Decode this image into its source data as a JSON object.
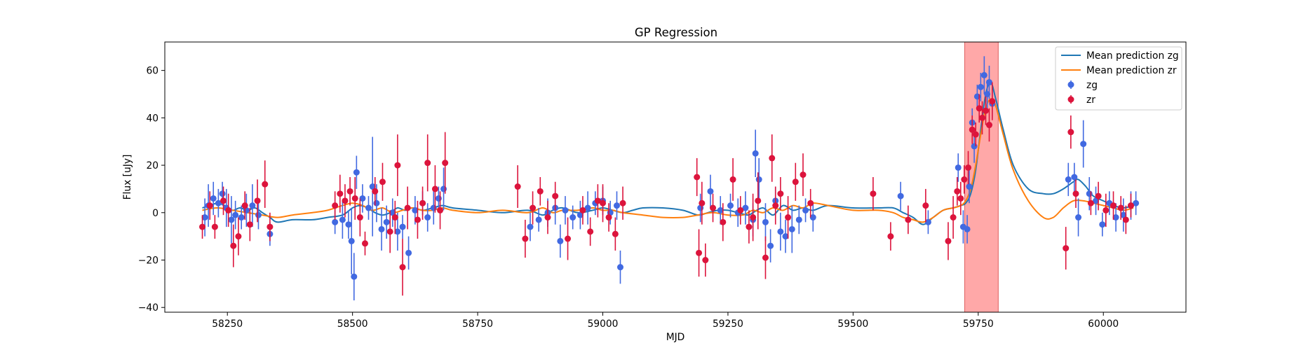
{
  "chart_data": {
    "type": "scatter",
    "title": "GP Regression",
    "xlabel": "MJD",
    "ylabel": "Flux [uJy]",
    "xlim": [
      58125,
      60165
    ],
    "ylim": [
      -42,
      72
    ],
    "xticks": [
      58250,
      58500,
      58750,
      59000,
      59250,
      59500,
      59750,
      60000
    ],
    "yticks": [
      -40,
      -20,
      0,
      20,
      40,
      60
    ],
    "grid": false,
    "legend_position": "top-right",
    "highlight_span": {
      "x0": 59723,
      "x1": 59790,
      "color": "#ff9f9f"
    },
    "colors": {
      "zg_points": "#4169e1",
      "zr_points": "#dc143c",
      "zg_mean": "#1f77b4",
      "zr_mean": "#ff7f0e"
    },
    "legend": [
      {
        "label": "Mean prediction zg",
        "kind": "line",
        "color": "#1f77b4"
      },
      {
        "label": "Mean prediction zr",
        "kind": "line",
        "color": "#ff7f0e"
      },
      {
        "label": "zg",
        "kind": "errorbar",
        "color": "#4169e1"
      },
      {
        "label": "zr",
        "kind": "errorbar",
        "color": "#dc143c"
      }
    ],
    "series": [
      {
        "name": "Mean prediction zg",
        "kind": "line",
        "color": "#1f77b4",
        "x": [
          58200,
          58215,
          58230,
          58245,
          58260,
          58275,
          58290,
          58305,
          58320,
          58335,
          58350,
          58380,
          58420,
          58450,
          58480,
          58500,
          58515,
          58530,
          58545,
          58560,
          58575,
          58590,
          58605,
          58620,
          58640,
          58660,
          58680,
          58700,
          58750,
          58800,
          58850,
          58880,
          58900,
          58920,
          58950,
          58980,
          59000,
          59020,
          59040,
          59060,
          59080,
          59120,
          59160,
          59190,
          59210,
          59230,
          59250,
          59270,
          59290,
          59300,
          59320,
          59340,
          59360,
          59380,
          59400,
          59420,
          59450,
          59500,
          59550,
          59580,
          59600,
          59620,
          59640,
          59660,
          59680,
          59700,
          59715,
          59725,
          59735,
          59745,
          59755,
          59765,
          59775,
          59785,
          59800,
          59820,
          59850,
          59880,
          59900,
          59920,
          59940,
          59950,
          59965,
          59980,
          60000,
          60020,
          60040,
          60060
        ],
        "y": [
          2,
          3,
          4,
          3,
          1,
          2,
          1,
          2,
          0,
          -2,
          -4,
          -3,
          -3,
          -2,
          -1,
          2,
          3,
          2,
          0,
          -1,
          0,
          2,
          1,
          2,
          1,
          2,
          3,
          2,
          1,
          0,
          1,
          -1,
          1,
          2,
          0,
          1,
          2,
          1,
          0,
          1,
          2,
          2,
          1,
          -1,
          0,
          1,
          1,
          0,
          -1,
          0,
          2,
          -1,
          3,
          1,
          2,
          1,
          3,
          2,
          2,
          2,
          0,
          -2,
          -5,
          -2,
          1,
          2,
          3,
          4,
          8,
          18,
          35,
          50,
          55,
          48,
          35,
          20,
          10,
          8,
          8,
          10,
          13,
          14,
          11,
          7,
          5,
          3,
          2,
          3
        ]
      },
      {
        "name": "Mean prediction zr",
        "kind": "line",
        "color": "#ff7f0e",
        "x": [
          58200,
          58230,
          58260,
          58290,
          58320,
          58350,
          58380,
          58420,
          58450,
          58480,
          58500,
          58520,
          58540,
          58560,
          58580,
          58600,
          58620,
          58640,
          58660,
          58680,
          58700,
          58750,
          58800,
          58850,
          58880,
          58900,
          58920,
          58950,
          58980,
          59000,
          59020,
          59040,
          59080,
          59120,
          59160,
          59190,
          59220,
          59250,
          59280,
          59300,
          59320,
          59340,
          59360,
          59380,
          59400,
          59420,
          59450,
          59500,
          59550,
          59580,
          59600,
          59620,
          59640,
          59660,
          59680,
          59700,
          59715,
          59725,
          59735,
          59745,
          59755,
          59765,
          59775,
          59785,
          59800,
          59820,
          59850,
          59880,
          59900,
          59920,
          59940,
          59960,
          59980,
          60000,
          60020,
          60040,
          60060
        ],
        "y": [
          1,
          2,
          1,
          0,
          -1,
          -2,
          -1,
          0,
          1,
          3,
          4,
          3,
          1,
          2,
          0,
          1,
          2,
          1,
          1,
          2,
          1,
          0,
          1,
          0,
          2,
          0,
          1,
          1,
          2,
          1,
          1,
          0,
          -1,
          -2,
          -2,
          -1,
          0,
          -1,
          -1,
          1,
          0,
          2,
          1,
          3,
          2,
          4,
          3,
          1,
          1,
          0,
          -2,
          -3,
          -4,
          -2,
          1,
          2,
          3,
          5,
          10,
          20,
          33,
          44,
          48,
          45,
          33,
          18,
          5,
          -2,
          -2,
          2,
          5,
          5,
          4,
          3,
          2,
          1,
          2
        ]
      },
      {
        "name": "zg",
        "kind": "errorbar",
        "color": "#4169e1",
        "x": [
          58205,
          58212,
          58222,
          58232,
          58240,
          58248,
          58258,
          58266,
          58278,
          58288,
          58300,
          58312,
          58335,
          58465,
          58480,
          58492,
          58498,
          58503,
          58508,
          58520,
          58532,
          58540,
          58548,
          58558,
          58568,
          58580,
          58590,
          58600,
          58612,
          58625,
          58640,
          58650,
          58662,
          58672,
          58682,
          58855,
          58872,
          58890,
          58905,
          58915,
          58925,
          58940,
          58955,
          58970,
          58985,
          59000,
          59015,
          59028,
          59035,
          59195,
          59215,
          59235,
          59255,
          59270,
          59285,
          59300,
          59305,
          59312,
          59325,
          59335,
          59345,
          59355,
          59365,
          59378,
          59392,
          59405,
          59420,
          59595,
          59650,
          59710,
          59720,
          59728,
          59732,
          59738,
          59742,
          59748,
          59755,
          59762,
          59768,
          59772,
          59778,
          59930,
          59942,
          59950,
          59960,
          59972,
          59985,
          59998,
          60012,
          60025,
          60040,
          60055,
          60065
        ],
        "y": [
          -2,
          3,
          6,
          4,
          8,
          2,
          -3,
          -1,
          -2,
          1,
          3,
          -1,
          -9,
          -4,
          -3,
          -5,
          -12,
          -27,
          17,
          6,
          2,
          11,
          4,
          -7,
          -4,
          0,
          -8,
          -6,
          -17,
          1,
          4,
          -2,
          2,
          6,
          10,
          -6,
          -3,
          0,
          2,
          -12,
          1,
          -2,
          -1,
          2,
          4,
          5,
          0,
          3,
          -23,
          2,
          9,
          1,
          3,
          0,
          2,
          -3,
          25,
          14,
          -4,
          -14,
          5,
          -8,
          -10,
          -7,
          -3,
          1,
          -2,
          7,
          -4,
          19,
          -6,
          -7,
          11,
          38,
          28,
          49,
          53,
          58,
          50,
          55,
          46,
          14,
          15,
          -2,
          29,
          8,
          5,
          -5,
          4,
          -2,
          -1,
          3,
          4
        ],
        "yerr": [
          8,
          9,
          7,
          6,
          5,
          8,
          10,
          6,
          5,
          7,
          9,
          6,
          5,
          5,
          8,
          6,
          14,
          10,
          7,
          6,
          5,
          21,
          8,
          9,
          7,
          6,
          8,
          5,
          7,
          6,
          5,
          6,
          7,
          5,
          9,
          6,
          5,
          6,
          7,
          7,
          6,
          5,
          6,
          7,
          5,
          6,
          5,
          6,
          7,
          6,
          7,
          6,
          5,
          6,
          7,
          7,
          10,
          9,
          8,
          7,
          6,
          8,
          7,
          10,
          6,
          5,
          6,
          6,
          5,
          6,
          7,
          6,
          7,
          6,
          7,
          5,
          6,
          8,
          6,
          7,
          6,
          7,
          6,
          8,
          10,
          7,
          6,
          5,
          5,
          6,
          7,
          6,
          5
        ]
      },
      {
        "name": "zr",
        "kind": "errorbar",
        "color": "#dc143c",
        "x": [
          58200,
          58215,
          58225,
          58242,
          58252,
          58262,
          58272,
          58285,
          58295,
          58310,
          58325,
          58335,
          58465,
          58475,
          58485,
          58495,
          58505,
          58515,
          58525,
          58545,
          58560,
          58575,
          58585,
          58590,
          58600,
          58610,
          58630,
          58640,
          58650,
          58665,
          58675,
          58685,
          58830,
          58845,
          58860,
          58875,
          58890,
          58905,
          58930,
          58960,
          58975,
          58990,
          59000,
          59012,
          59025,
          59040,
          59188,
          59192,
          59198,
          59205,
          59220,
          59240,
          59260,
          59275,
          59292,
          59300,
          59310,
          59325,
          59338,
          59345,
          59355,
          59370,
          59385,
          59400,
          59415,
          59540,
          59575,
          59610,
          59645,
          59690,
          59700,
          59708,
          59715,
          59722,
          59730,
          59738,
          59745,
          59752,
          59758,
          59765,
          59772,
          59778,
          59925,
          59935,
          59945,
          59975,
          59990,
          60005,
          60020,
          60035,
          60045,
          60055
        ],
        "y": [
          -6,
          3,
          -6,
          5,
          1,
          -14,
          -10,
          3,
          -5,
          5,
          12,
          -6,
          3,
          8,
          5,
          9,
          6,
          -2,
          -13,
          9,
          13,
          -8,
          -2,
          20,
          -23,
          2,
          -3,
          4,
          21,
          10,
          1,
          21,
          11,
          -11,
          2,
          9,
          -2,
          7,
          -11,
          1,
          -8,
          5,
          4,
          -2,
          -9,
          4,
          15,
          -17,
          4,
          -20,
          2,
          -4,
          14,
          1,
          -6,
          -2,
          5,
          -19,
          23,
          3,
          8,
          -2,
          13,
          16,
          4,
          8,
          -10,
          -3,
          3,
          -12,
          -2,
          9,
          6,
          14,
          19,
          35,
          33,
          44,
          40,
          43,
          37,
          47,
          -15,
          34,
          8,
          4,
          7,
          1,
          3,
          2,
          -3,
          3
        ],
        "yerr": [
          5,
          6,
          5,
          6,
          7,
          9,
          8,
          6,
          7,
          9,
          10,
          6,
          6,
          8,
          7,
          6,
          9,
          8,
          5,
          6,
          8,
          9,
          7,
          13,
          12,
          9,
          8,
          7,
          12,
          10,
          8,
          13,
          9,
          8,
          7,
          6,
          7,
          6,
          9,
          6,
          6,
          7,
          8,
          6,
          7,
          7,
          8,
          10,
          9,
          7,
          6,
          8,
          9,
          6,
          7,
          10,
          12,
          9,
          10,
          8,
          7,
          9,
          8,
          9,
          6,
          7,
          6,
          6,
          7,
          8,
          9,
          6,
          7,
          6,
          7,
          6,
          5,
          6,
          7,
          6,
          7,
          8,
          9,
          7,
          6,
          5,
          6,
          7,
          6,
          5,
          6,
          5
        ]
      }
    ]
  }
}
